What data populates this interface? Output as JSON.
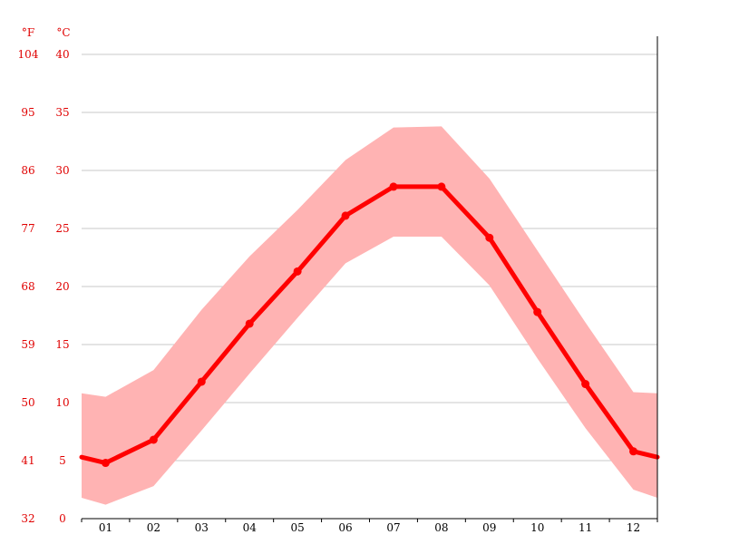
{
  "chart_data": {
    "type": "line",
    "x": [
      "01",
      "02",
      "03",
      "04",
      "05",
      "06",
      "07",
      "08",
      "09",
      "10",
      "11",
      "12"
    ],
    "series": [
      {
        "values": [
          4.8,
          6.8,
          11.8,
          16.8,
          21.3,
          26.1,
          28.6,
          28.6,
          24.2,
          17.8,
          11.6,
          5.8
        ]
      }
    ],
    "range_high": [
      10.5,
      12.8,
      18.0,
      22.6,
      26.6,
      30.9,
      33.7,
      33.8,
      29.3,
      23.1,
      16.9,
      10.9
    ],
    "range_low": [
      1.2,
      2.8,
      7.6,
      12.5,
      17.3,
      22.0,
      24.3,
      24.3,
      20.1,
      13.8,
      7.8,
      2.5
    ],
    "edge_left": {
      "high": 10.8,
      "mean": 5.3,
      "low": 1.8
    },
    "edge_right": {
      "high": 10.8,
      "mean": 5.3,
      "low": 1.8
    },
    "units": {
      "fahrenheit": "°F",
      "celsius": "°C"
    },
    "yticks_c": [
      "0",
      "5",
      "10",
      "15",
      "20",
      "25",
      "30",
      "35",
      "40"
    ],
    "yticks_f": [
      "32",
      "41",
      "50",
      "59",
      "68",
      "77",
      "86",
      "95",
      "104"
    ],
    "ylim": [
      0,
      40
    ],
    "grid": true,
    "colors": {
      "line": "#ff0000",
      "band": "#ffb3b3",
      "axis_text": "#e00000",
      "grid": "#c8c8c8"
    }
  }
}
